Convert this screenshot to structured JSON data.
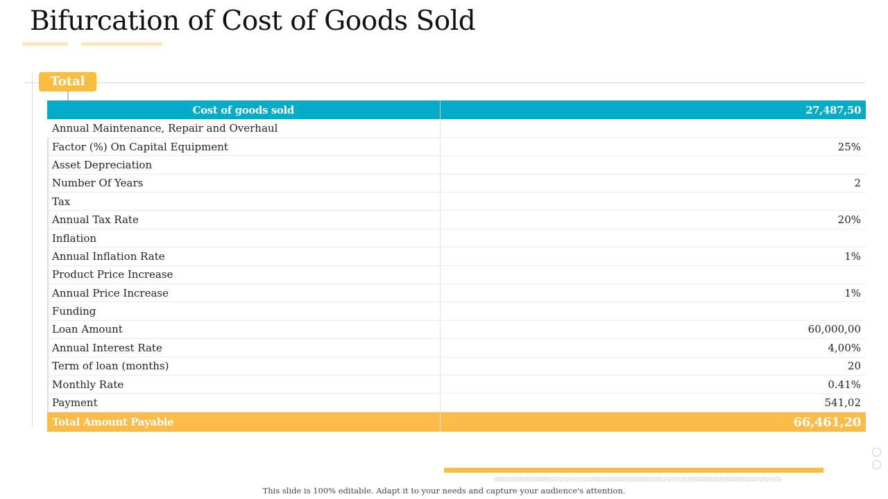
{
  "slide": {
    "title": "Bifurcation of Cost of Goods Sold",
    "section_tag": "Total",
    "footnote": "This slide is 100% editable.  Adapt it to your needs and capture your audience's  attention."
  },
  "table": {
    "header": {
      "label": "Cost of goods sold",
      "value": "27,487,50"
    },
    "rows": [
      {
        "label": "Annual Maintenance, Repair and Overhaul",
        "value": ""
      },
      {
        "label": "Factor (%) On Capital Equipment",
        "value": "25%"
      },
      {
        "label": "Asset Depreciation",
        "value": ""
      },
      {
        "label": "Number Of Years",
        "value": "2"
      },
      {
        "label": "Tax",
        "value": ""
      },
      {
        "label": "Annual Tax Rate",
        "value": "20%"
      },
      {
        "label": "Inflation",
        "value": ""
      },
      {
        "label": "Annual Inflation Rate",
        "value": "1%"
      },
      {
        "label": "Product Price Increase",
        "value": ""
      },
      {
        "label": "Annual Price Increase",
        "value": "1%"
      },
      {
        "label": "Funding",
        "value": ""
      },
      {
        "label": "Loan Amount",
        "value": "60,000,00"
      },
      {
        "label": "Annual Interest Rate",
        "value": "4,00%"
      },
      {
        "label": "Term of loan (months)",
        "value": "20"
      },
      {
        "label": "Monthly Rate",
        "value": "0.41%"
      },
      {
        "label": "Payment",
        "value": "541,02"
      }
    ],
    "footer": {
      "label": "Total Amount Payable",
      "value": "66,461,20"
    }
  },
  "colors": {
    "header_teal": "#02acc7",
    "accent_orange": "#fbbd40",
    "underline_pale": "#fde7b3"
  }
}
